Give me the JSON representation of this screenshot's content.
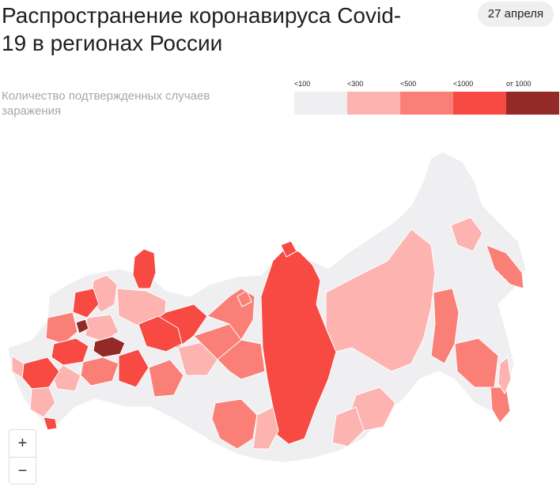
{
  "header": {
    "title": "Распространение коронавируса Covid-19 в регионах России",
    "date_label": "27 апреля",
    "subtitle": "Количество подтвержденных случаев заражения"
  },
  "legend": {
    "items": [
      {
        "label": "<100",
        "color": "#efeef0"
      },
      {
        "label": "<300",
        "color": "#fdb4b1"
      },
      {
        "label": "<500",
        "color": "#fa7f77"
      },
      {
        "label": "<1000",
        "color": "#f64a43"
      },
      {
        "label": "от 1000",
        "color": "#932a27"
      }
    ]
  },
  "zoom": {
    "in_label": "+",
    "out_label": "−"
  },
  "map": {
    "region_colors": {
      "lt100": "#efeef0",
      "lt300": "#fdb4b1",
      "lt500": "#fa7f77",
      "lt1000": "#f64a43",
      "gte1000": "#932a27"
    }
  }
}
